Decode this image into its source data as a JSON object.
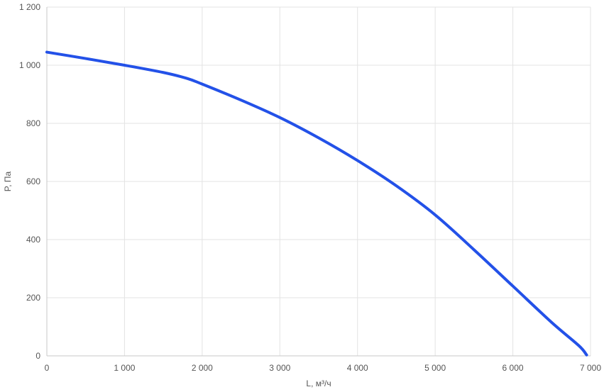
{
  "chart_data": {
    "type": "line",
    "title": "",
    "xlabel": "L, м³/ч",
    "ylabel": "P, Па",
    "xlim": [
      0,
      7000
    ],
    "ylim": [
      0,
      1200
    ],
    "x_ticks": [
      0,
      1000,
      2000,
      3000,
      4000,
      5000,
      6000,
      7000
    ],
    "x_tick_labels": [
      "0",
      "1 000",
      "2 000",
      "3 000",
      "4 000",
      "5 000",
      "6 000",
      "7 000"
    ],
    "y_ticks": [
      0,
      200,
      400,
      600,
      800,
      1000,
      1200
    ],
    "y_tick_labels": [
      "0",
      "200",
      "400",
      "600",
      "800",
      "1 000",
      "1 200"
    ],
    "grid": true,
    "series": [
      {
        "color": "#2351e8",
        "x": [
          0,
          500,
          1000,
          1500,
          1800,
          2000,
          2500,
          3000,
          3500,
          4000,
          4500,
          5000,
          5500,
          6000,
          6500,
          6850,
          6950
        ],
        "y": [
          1045,
          1023,
          1000,
          975,
          955,
          935,
          880,
          820,
          750,
          672,
          585,
          485,
          365,
          240,
          115,
          35,
          3
        ]
      }
    ]
  }
}
